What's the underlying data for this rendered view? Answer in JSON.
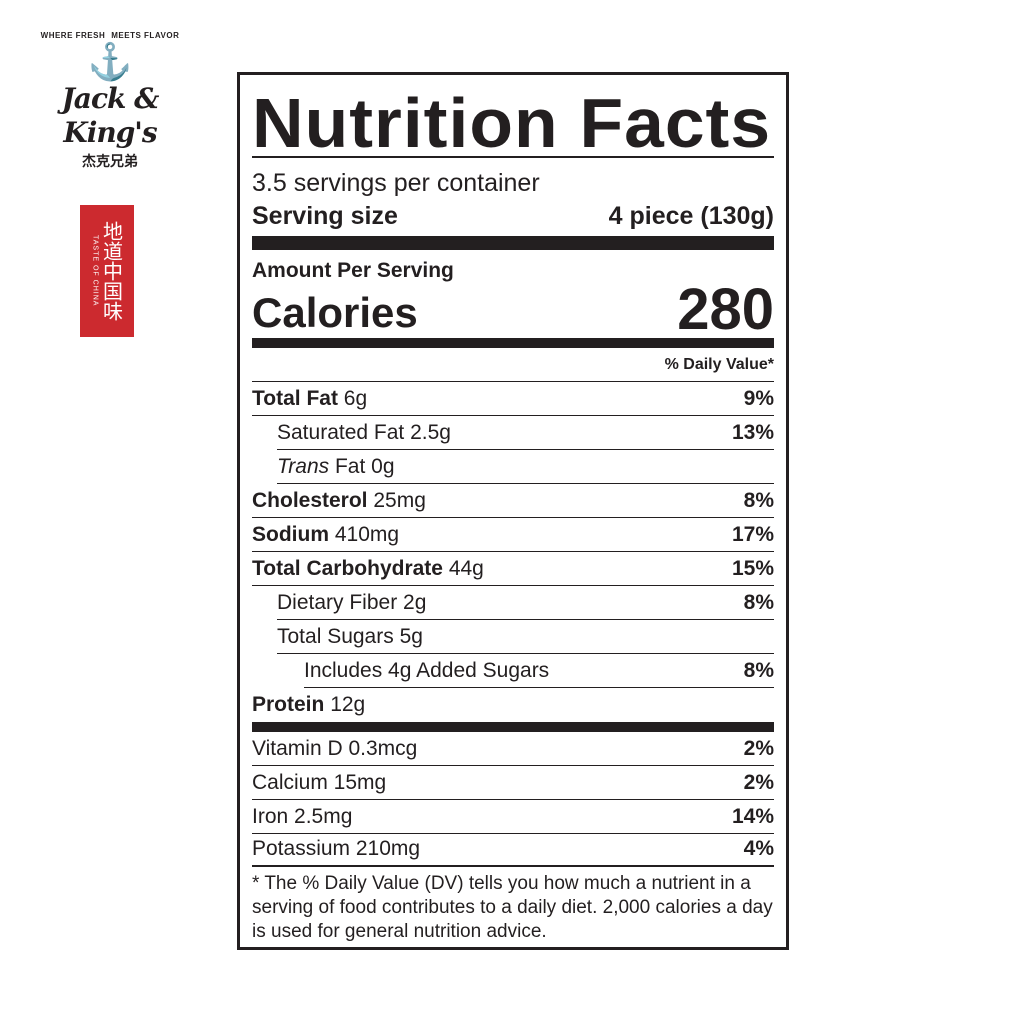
{
  "logo": {
    "tagline_left": "WHERE FRESH",
    "tagline_right": "MEETS FLAVOR",
    "brand": "Jack & King's",
    "chinese": "杰克兄弟"
  },
  "stamp": {
    "chinese": "地道中国味",
    "english": "TASTE OF CHINA",
    "color": "#cc2a2f"
  },
  "label": {
    "title": "Nutrition Facts",
    "servings": "3.5 servings per container",
    "serving_size_label": "Serving size",
    "serving_size_value": "4 piece (130g)",
    "amount_per_serving": "Amount Per Serving",
    "calories_label": "Calories",
    "calories_value": "280",
    "daily_value_header": "% Daily Value*",
    "nutrients": [
      {
        "name": "Total Fat",
        "amount": "6g",
        "dv": "9%"
      },
      {
        "name": "Saturated Fat",
        "amount": "2.5g",
        "dv": "13%"
      },
      {
        "name": "Trans",
        "name2": "Fat",
        "amount": "0g",
        "dv": ""
      },
      {
        "name": "Cholesterol",
        "amount": "25mg",
        "dv": "8%"
      },
      {
        "name": "Sodium",
        "amount": "410mg",
        "dv": "17%"
      },
      {
        "name": "Total Carbohydrate",
        "amount": "44g",
        "dv": "15%"
      },
      {
        "name": "Dietary Fiber",
        "amount": "2g",
        "dv": "8%"
      },
      {
        "name": "Total Sugars",
        "amount": "5g",
        "dv": ""
      },
      {
        "name": "Includes 4g Added Sugars",
        "amount": "",
        "dv": "8%"
      },
      {
        "name": "Protein",
        "amount": "12g",
        "dv": ""
      }
    ],
    "vitamins": [
      {
        "name": "Vitamin D 0.3mcg",
        "dv": "2%"
      },
      {
        "name": "Calcium 15mg",
        "dv": "2%"
      },
      {
        "name": "Iron 2.5mg",
        "dv": "14%"
      },
      {
        "name": "Potassium 210mg",
        "dv": "4%"
      }
    ],
    "footnote": "* The % Daily Value (DV) tells you how much a nutrient in a serving of food contributes to a daily diet. 2,000 calories a day is used for general nutrition advice."
  }
}
